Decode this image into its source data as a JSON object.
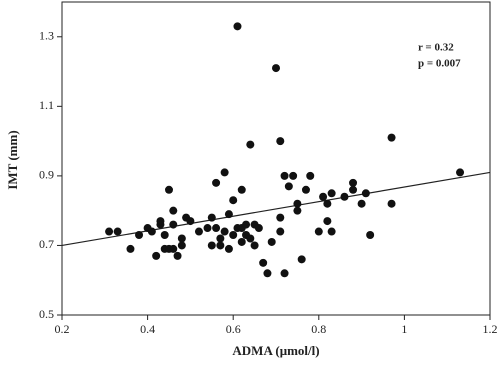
{
  "chart_data": {
    "type": "scatter",
    "x_label": "ADMA (μmol/l)",
    "y_label": "IMT (mm)",
    "annotations": [
      "r = 0.32",
      "p = 0.007"
    ],
    "color": "#111111",
    "xlim": [
      0.2,
      1.2
    ],
    "xticks": [
      0.2,
      0.4,
      0.6,
      0.8,
      1,
      1.2
    ],
    "ylim": [
      0.5,
      1.4
    ],
    "yticks": [
      0.5,
      0.7,
      0.9,
      1.1,
      1.3
    ],
    "x": [
      0.31,
      0.33,
      0.36,
      0.38,
      0.4,
      0.41,
      0.42,
      0.43,
      0.43,
      0.44,
      0.44,
      0.45,
      0.45,
      0.46,
      0.46,
      0.46,
      0.47,
      0.48,
      0.48,
      0.49,
      0.5,
      0.52,
      0.54,
      0.55,
      0.55,
      0.56,
      0.56,
      0.57,
      0.57,
      0.58,
      0.58,
      0.59,
      0.59,
      0.6,
      0.6,
      0.61,
      0.61,
      0.62,
      0.62,
      0.62,
      0.63,
      0.63,
      0.64,
      0.64,
      0.65,
      0.65,
      0.66,
      0.67,
      0.68,
      0.69,
      0.7,
      0.71,
      0.71,
      0.71,
      0.72,
      0.72,
      0.73,
      0.74,
      0.75,
      0.75,
      0.76,
      0.77,
      0.78,
      0.8,
      0.81,
      0.82,
      0.82,
      0.83,
      0.83,
      0.86,
      0.88,
      0.88,
      0.9,
      0.91,
      0.92,
      0.97,
      0.97,
      1.13
    ],
    "y": [
      0.74,
      0.74,
      0.69,
      0.73,
      0.75,
      0.74,
      0.67,
      0.76,
      0.77,
      0.69,
      0.73,
      0.86,
      0.69,
      0.8,
      0.76,
      0.69,
      0.67,
      0.7,
      0.72,
      0.78,
      0.77,
      0.74,
      0.75,
      0.7,
      0.78,
      0.88,
      0.75,
      0.72,
      0.7,
      0.74,
      0.91,
      0.69,
      0.79,
      0.73,
      0.83,
      0.75,
      1.33,
      0.75,
      0.86,
      0.71,
      0.76,
      0.73,
      0.99,
      0.72,
      0.76,
      0.7,
      0.75,
      0.65,
      0.62,
      0.71,
      1.21,
      1.0,
      0.78,
      0.74,
      0.62,
      0.9,
      0.87,
      0.9,
      0.8,
      0.82,
      0.66,
      0.86,
      0.9,
      0.74,
      0.84,
      0.77,
      0.82,
      0.74,
      0.85,
      0.84,
      0.88,
      0.86,
      0.82,
      0.85,
      0.73,
      1.01,
      0.82,
      0.91
    ],
    "trendline": {
      "x": [
        0.2,
        1.2
      ],
      "y": [
        0.7,
        0.91
      ]
    }
  }
}
